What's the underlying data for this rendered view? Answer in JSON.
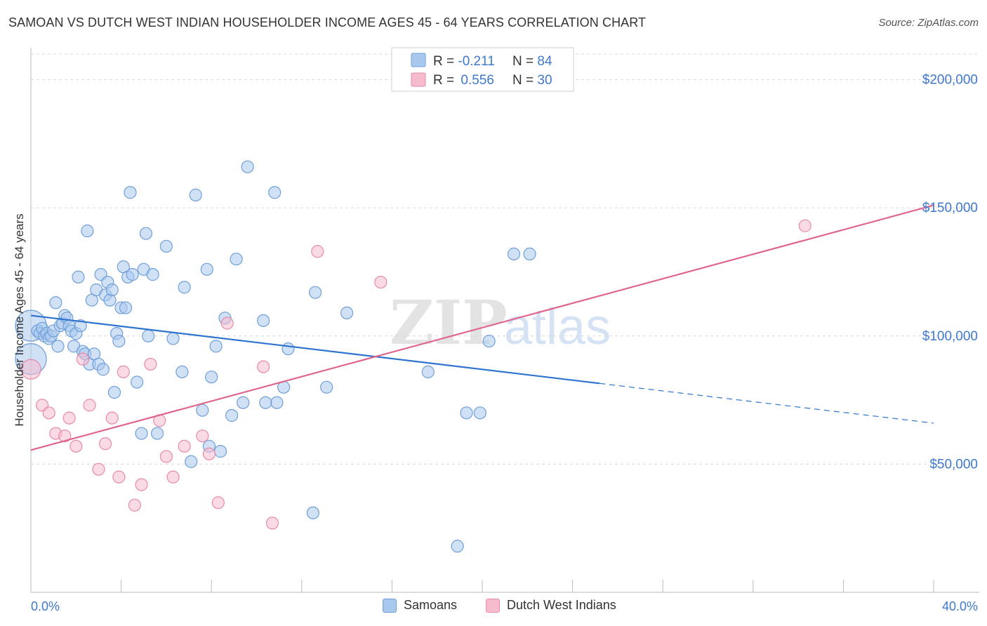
{
  "header": {
    "title": "SAMOAN VS DUTCH WEST INDIAN HOUSEHOLDER INCOME AGES 45 - 64 YEARS CORRELATION CHART",
    "source": "Source: ZipAtlas.com"
  },
  "watermark": {
    "zip": "ZIP",
    "atlas": "atlas"
  },
  "colors": {
    "blue_fill": "#a9c8ee",
    "blue_stroke": "#6f9fd8",
    "blue_line": "#2f73d0",
    "pink_fill": "#f6bccd",
    "pink_stroke": "#e88aa8",
    "pink_line": "#e0668f",
    "tick_label": "#3f78cc",
    "grid": "#d9d9d9"
  },
  "legend": {
    "rows": [
      {
        "r_label": "R = ",
        "r_value": "-0.211",
        "n_label": "N = ",
        "n_value": "84",
        "series": "blue"
      },
      {
        "r_label": "R = ",
        "r_value": "0.556",
        "n_label": "N = ",
        "n_value": "30",
        "series": "pink"
      }
    ]
  },
  "bottom_legend": {
    "items": [
      {
        "label": "Samoans",
        "series": "blue"
      },
      {
        "label": "Dutch West Indians",
        "series": "pink"
      }
    ]
  },
  "chart_data": {
    "type": "scatter",
    "title": "SAMOAN VS DUTCH WEST INDIAN HOUSEHOLDER INCOME AGES 45 - 64 YEARS CORRELATION CHART",
    "xlabel": "",
    "ylabel": "Householder Income Ages 45 - 64 years",
    "xlim": [
      0,
      40
    ],
    "ylim": [
      0,
      210000
    ],
    "x_tick_labels": [
      "0.0%",
      "40.0%"
    ],
    "y_ticks": [
      {
        "value": 50000,
        "label": "$50,000"
      },
      {
        "value": 100000,
        "label": "$100,000"
      },
      {
        "value": 150000,
        "label": "$150,000"
      },
      {
        "value": 200000,
        "label": "$200,000"
      }
    ],
    "grid": true,
    "legend_position": "top-center",
    "series": [
      {
        "name": "Samoans",
        "color": "#a9c8ee",
        "r": -0.211,
        "n": 84,
        "trend": {
          "x0": 0,
          "y0": 108000,
          "x1": 25.2,
          "y1": 81500,
          "dash_to_x": 40,
          "dash_to_y": 66000
        },
        "points": [
          [
            0.0,
            104000,
            3
          ],
          [
            0.0,
            91000,
            3
          ],
          [
            0.3,
            102000,
            1
          ],
          [
            0.4,
            101000,
            1
          ],
          [
            0.5,
            103000,
            1
          ],
          [
            0.6,
            100000,
            1
          ],
          [
            0.7,
            101000,
            1
          ],
          [
            0.8,
            99000,
            1
          ],
          [
            0.9,
            100000,
            1
          ],
          [
            1.0,
            102000,
            1
          ],
          [
            1.1,
            113000,
            1
          ],
          [
            1.2,
            96000,
            1
          ],
          [
            1.3,
            104000,
            1
          ],
          [
            1.4,
            105000,
            1
          ],
          [
            1.5,
            108000,
            1
          ],
          [
            1.6,
            107000,
            1
          ],
          [
            1.7,
            104000,
            1
          ],
          [
            1.8,
            102000,
            1
          ],
          [
            1.9,
            96000,
            1
          ],
          [
            2.0,
            101000,
            1
          ],
          [
            2.1,
            123000,
            1
          ],
          [
            2.2,
            104000,
            1
          ],
          [
            2.3,
            94000,
            1
          ],
          [
            2.4,
            93000,
            1
          ],
          [
            2.5,
            141000,
            1
          ],
          [
            2.6,
            89000,
            1
          ],
          [
            2.7,
            114000,
            1
          ],
          [
            2.8,
            93000,
            1
          ],
          [
            2.9,
            118000,
            1
          ],
          [
            3.0,
            89000,
            1
          ],
          [
            3.1,
            124000,
            1
          ],
          [
            3.2,
            87000,
            1
          ],
          [
            3.3,
            116000,
            1
          ],
          [
            3.4,
            121000,
            1
          ],
          [
            3.5,
            114000,
            1
          ],
          [
            3.6,
            118000,
            1
          ],
          [
            3.7,
            78000,
            1
          ],
          [
            3.8,
            101000,
            1
          ],
          [
            3.9,
            98000,
            1
          ],
          [
            4.0,
            111000,
            1
          ],
          [
            4.1,
            127000,
            1
          ],
          [
            4.2,
            111000,
            1
          ],
          [
            4.3,
            123000,
            1
          ],
          [
            4.4,
            156000,
            1
          ],
          [
            4.5,
            124000,
            1
          ],
          [
            4.7,
            82000,
            1
          ],
          [
            4.9,
            62000,
            1
          ],
          [
            5.0,
            126000,
            1
          ],
          [
            5.1,
            140000,
            1
          ],
          [
            5.2,
            100000,
            1
          ],
          [
            5.4,
            124000,
            1
          ],
          [
            5.6,
            62000,
            1
          ],
          [
            6.0,
            135000,
            1
          ],
          [
            6.3,
            99000,
            1
          ],
          [
            6.7,
            86000,
            1
          ],
          [
            6.8,
            119000,
            1
          ],
          [
            7.1,
            51000,
            1
          ],
          [
            7.3,
            155000,
            1
          ],
          [
            7.6,
            71000,
            1
          ],
          [
            7.8,
            126000,
            1
          ],
          [
            7.9,
            57000,
            1
          ],
          [
            8.0,
            84000,
            1
          ],
          [
            8.2,
            96000,
            1
          ],
          [
            8.4,
            55000,
            1
          ],
          [
            8.6,
            107000,
            1
          ],
          [
            8.9,
            69000,
            1
          ],
          [
            9.1,
            130000,
            1
          ],
          [
            9.4,
            74000,
            1
          ],
          [
            9.6,
            166000,
            1
          ],
          [
            10.3,
            106000,
            1
          ],
          [
            10.4,
            74000,
            1
          ],
          [
            10.8,
            156000,
            1
          ],
          [
            10.9,
            74000,
            1
          ],
          [
            11.2,
            80000,
            1
          ],
          [
            11.4,
            95000,
            1
          ],
          [
            12.5,
            31000,
            1
          ],
          [
            12.6,
            117000,
            1
          ],
          [
            13.1,
            80000,
            1
          ],
          [
            14.0,
            109000,
            1
          ],
          [
            17.6,
            86000,
            1
          ],
          [
            18.9,
            18000,
            1
          ],
          [
            19.3,
            70000,
            1
          ],
          [
            19.9,
            70000,
            1
          ],
          [
            20.3,
            98000,
            1
          ],
          [
            21.4,
            132000,
            1
          ],
          [
            22.1,
            132000,
            1
          ]
        ]
      },
      {
        "name": "Dutch West Indians",
        "color": "#f6bccd",
        "r": 0.556,
        "n": 30,
        "trend": {
          "x0": 0,
          "y0": 55500,
          "x1": 40,
          "y1": 151000
        },
        "points": [
          [
            0.0,
            87000,
            2
          ],
          [
            0.5,
            73000,
            1
          ],
          [
            0.8,
            70000,
            1
          ],
          [
            1.1,
            62000,
            1
          ],
          [
            1.5,
            61000,
            1
          ],
          [
            1.7,
            68000,
            1
          ],
          [
            2.0,
            57000,
            1
          ],
          [
            2.3,
            91000,
            1
          ],
          [
            2.6,
            73000,
            1
          ],
          [
            3.0,
            48000,
            1
          ],
          [
            3.3,
            58000,
            1
          ],
          [
            3.6,
            68000,
            1
          ],
          [
            3.9,
            45000,
            1
          ],
          [
            4.1,
            86000,
            1
          ],
          [
            4.6,
            34000,
            1
          ],
          [
            4.9,
            42000,
            1
          ],
          [
            5.3,
            89000,
            1
          ],
          [
            5.7,
            67000,
            1
          ],
          [
            6.0,
            53000,
            1
          ],
          [
            6.3,
            45000,
            1
          ],
          [
            6.8,
            57000,
            1
          ],
          [
            7.6,
            61000,
            1
          ],
          [
            7.9,
            54000,
            1
          ],
          [
            8.3,
            35000,
            1
          ],
          [
            8.7,
            105000,
            1
          ],
          [
            10.3,
            88000,
            1
          ],
          [
            10.7,
            27000,
            1
          ],
          [
            12.7,
            133000,
            1
          ],
          [
            15.5,
            121000,
            1
          ],
          [
            34.3,
            143000,
            1
          ]
        ]
      }
    ]
  }
}
